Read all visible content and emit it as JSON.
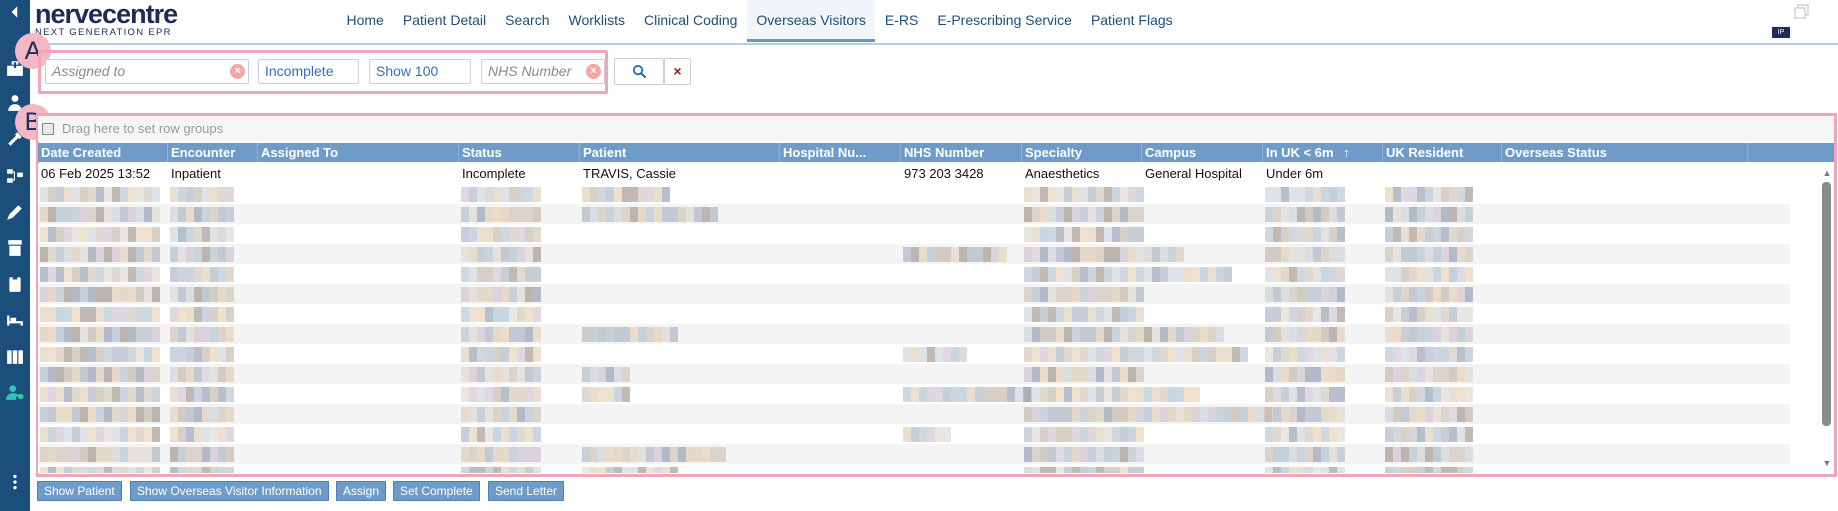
{
  "header": {
    "logo_main": "nervecentre",
    "logo_sub": "NEXT GENERATION EPR",
    "badge": "IP"
  },
  "nav": {
    "items": [
      {
        "label": "Home"
      },
      {
        "label": "Patient Detail"
      },
      {
        "label": "Search"
      },
      {
        "label": "Worklists"
      },
      {
        "label": "Clinical Coding"
      },
      {
        "label": "Overseas Visitors",
        "active": true
      },
      {
        "label": "E-RS"
      },
      {
        "label": "E-Prescribing Service"
      },
      {
        "label": "Patient Flags"
      }
    ]
  },
  "sidebar": {
    "icons": [
      "collapse-arrow-icon",
      "hospital-icon",
      "patient-icon",
      "tools-icon",
      "pathway-icon",
      "pen-icon",
      "archive-icon",
      "clipboard-icon",
      "bed-icon",
      "library-icon",
      "user-settings-icon",
      "more-icon"
    ]
  },
  "callouts": {
    "a": "A",
    "b": "B"
  },
  "filters": {
    "assigned_to_placeholder": "Assigned to",
    "status_value": "Incomplete",
    "show_value": "Show 100",
    "nhs_placeholder": "NHS Number",
    "clear_glyph": "×"
  },
  "grid": {
    "group_bar_text": "Drag here to set row groups",
    "columns": [
      "Date Created",
      "Encounter",
      "Assigned To",
      "Status",
      "Patient",
      "Hospital Nu...",
      "NHS Number",
      "Specialty",
      "Campus",
      "In UK < 6m",
      "UK Resident",
      "Overseas Status"
    ],
    "sort_indicator": "↑",
    "first_row": [
      "06 Feb 2025 13:52",
      "Inpatient",
      "",
      "Incomplete",
      "TRAVIS, Cassie",
      "",
      "973 203 3428",
      "Anaesthetics",
      "General Hospital",
      "Under 6m",
      "",
      ""
    ]
  },
  "actions": {
    "show_patient": "Show Patient",
    "show_overseas": "Show Overseas Visitor Information",
    "assign": "Assign",
    "set_complete": "Set Complete",
    "send_letter": "Send Letter"
  }
}
